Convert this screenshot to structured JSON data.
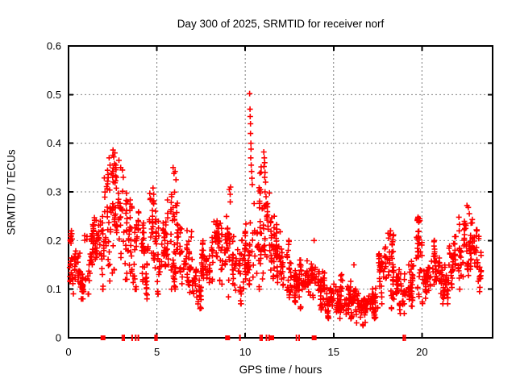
{
  "chart_data": {
    "type": "scatter",
    "title": "Day 300 of 2025, SRMTID for receiver norf",
    "xlabel": "GPS time / hours",
    "ylabel": "SRMTID / TECUs",
    "xlim": [
      0,
      24
    ],
    "ylim": [
      0,
      0.6
    ],
    "xticks": [
      0,
      5,
      10,
      15,
      20
    ],
    "yticks": [
      0,
      0.1,
      0.2,
      0.3,
      0.4,
      0.5,
      0.6
    ],
    "grid": true,
    "legend": "none",
    "marker": "plus",
    "marker_color": "#ff0000",
    "series": [
      {
        "name": "SRMTID",
        "color": "#ff0000",
        "bands_format": [
          "x_start_hour",
          "x_end_hour",
          "point_count",
          "y_min",
          "y_max"
        ],
        "bands": [
          [
            0.0,
            0.5,
            26,
            0.09,
            0.22
          ],
          [
            0.5,
            1.0,
            26,
            0.08,
            0.21
          ],
          [
            1.0,
            1.5,
            26,
            0.09,
            0.25
          ],
          [
            1.5,
            2.0,
            26,
            0.1,
            0.28
          ],
          [
            2.0,
            2.5,
            28,
            0.11,
            0.38
          ],
          [
            2.5,
            3.0,
            28,
            0.12,
            0.39
          ],
          [
            3.0,
            3.5,
            26,
            0.12,
            0.35
          ],
          [
            3.5,
            4.0,
            26,
            0.1,
            0.28
          ],
          [
            4.0,
            4.5,
            26,
            0.08,
            0.24
          ],
          [
            4.5,
            5.0,
            26,
            0.1,
            0.31
          ],
          [
            5.0,
            5.5,
            26,
            0.08,
            0.27
          ],
          [
            5.5,
            6.0,
            26,
            0.1,
            0.35
          ],
          [
            6.0,
            6.5,
            26,
            0.1,
            0.33
          ],
          [
            6.5,
            7.0,
            26,
            0.08,
            0.23
          ],
          [
            7.0,
            7.5,
            26,
            0.06,
            0.18
          ],
          [
            7.5,
            8.0,
            26,
            0.08,
            0.22
          ],
          [
            8.0,
            8.5,
            26,
            0.1,
            0.27
          ],
          [
            8.5,
            9.0,
            26,
            0.08,
            0.28
          ],
          [
            9.0,
            9.5,
            26,
            0.06,
            0.31
          ],
          [
            9.5,
            10.0,
            26,
            0.07,
            0.22
          ],
          [
            10.0,
            10.5,
            26,
            0.08,
            0.27
          ],
          [
            10.5,
            11.0,
            26,
            0.1,
            0.36
          ],
          [
            11.0,
            11.5,
            26,
            0.1,
            0.33
          ],
          [
            11.5,
            12.0,
            26,
            0.09,
            0.25
          ],
          [
            12.0,
            12.5,
            26,
            0.08,
            0.2
          ],
          [
            12.5,
            13.0,
            26,
            0.07,
            0.18
          ],
          [
            13.0,
            13.5,
            26,
            0.06,
            0.16
          ],
          [
            13.5,
            14.0,
            26,
            0.05,
            0.2
          ],
          [
            14.0,
            14.5,
            28,
            0.05,
            0.15
          ],
          [
            14.5,
            15.0,
            28,
            0.04,
            0.12
          ],
          [
            15.0,
            15.5,
            28,
            0.04,
            0.13
          ],
          [
            15.5,
            16.0,
            28,
            0.03,
            0.12
          ],
          [
            16.0,
            16.5,
            28,
            0.03,
            0.1
          ],
          [
            16.5,
            17.0,
            28,
            0.025,
            0.09
          ],
          [
            17.0,
            17.5,
            28,
            0.04,
            0.12
          ],
          [
            17.5,
            18.0,
            26,
            0.06,
            0.2
          ],
          [
            18.0,
            18.5,
            26,
            0.06,
            0.22
          ],
          [
            18.5,
            19.0,
            26,
            0.05,
            0.14
          ],
          [
            19.0,
            19.5,
            26,
            0.06,
            0.16
          ],
          [
            19.5,
            20.0,
            26,
            0.07,
            0.245
          ],
          [
            20.0,
            20.5,
            26,
            0.05,
            0.17
          ],
          [
            20.5,
            21.0,
            26,
            0.08,
            0.2
          ],
          [
            21.0,
            21.5,
            26,
            0.07,
            0.17
          ],
          [
            21.5,
            22.0,
            26,
            0.09,
            0.22
          ],
          [
            22.0,
            22.5,
            26,
            0.1,
            0.28
          ],
          [
            22.5,
            23.0,
            26,
            0.1,
            0.26
          ],
          [
            23.0,
            23.35,
            20,
            0.09,
            0.24
          ]
        ],
        "highlight_points": [
          [
            10.25,
            0.502
          ],
          [
            10.27,
            0.47
          ],
          [
            10.28,
            0.455
          ],
          [
            10.3,
            0.44
          ],
          [
            10.3,
            0.42
          ],
          [
            10.32,
            0.4
          ],
          [
            10.33,
            0.388
          ],
          [
            10.31,
            0.37
          ],
          [
            10.34,
            0.355
          ],
          [
            10.36,
            0.342
          ],
          [
            10.38,
            0.328
          ],
          [
            10.4,
            0.315
          ],
          [
            11.05,
            0.382
          ],
          [
            11.08,
            0.37
          ],
          [
            11.1,
            0.36
          ],
          [
            11.06,
            0.352
          ],
          [
            11.12,
            0.34
          ],
          [
            11.1,
            0.33
          ],
          [
            11.15,
            0.32
          ],
          [
            11.12,
            0.3
          ],
          [
            11.18,
            0.29
          ],
          [
            11.2,
            0.275
          ],
          [
            11.22,
            0.25
          ],
          [
            11.24,
            0.242
          ],
          [
            2.3,
            0.37
          ],
          [
            2.35,
            0.355
          ],
          [
            2.44,
            0.338
          ],
          [
            2.52,
            0.386
          ],
          [
            2.56,
            0.372
          ],
          [
            2.6,
            0.358
          ],
          [
            2.62,
            0.38
          ],
          [
            2.66,
            0.35
          ],
          [
            2.72,
            0.33
          ],
          [
            2.85,
            0.365
          ],
          [
            2.95,
            0.35
          ],
          [
            3.05,
            0.345
          ],
          [
            3.1,
            0.33
          ],
          [
            4.78,
            0.308
          ],
          [
            4.82,
            0.295
          ],
          [
            5.92,
            0.35
          ],
          [
            5.97,
            0.338
          ],
          [
            6.03,
            0.342
          ],
          [
            6.08,
            0.325
          ],
          [
            9.1,
            0.305
          ],
          [
            9.15,
            0.295
          ],
          [
            13.9,
            0.2
          ],
          [
            16.15,
            0.15
          ],
          [
            18.08,
            0.215
          ],
          [
            18.12,
            0.205
          ],
          [
            19.78,
            0.248
          ],
          [
            19.82,
            0.238
          ],
          [
            22.55,
            0.272
          ],
          [
            22.62,
            0.268
          ],
          [
            22.68,
            0.255
          ]
        ]
      }
    ],
    "axis_flags": {
      "description": "red markers drawn on the x-axis baseline",
      "color": "#ff0000",
      "square_hours": [
        1.95,
        9.0,
        11.5,
        13.9
      ],
      "bar_hours": [
        3.05,
        3.15,
        3.6,
        3.8,
        3.95,
        4.9,
        5.0,
        9.7,
        10.85,
        10.95,
        11.2,
        11.35,
        12.9,
        13.05,
        18.95,
        19.05
      ]
    }
  },
  "colors": {
    "background": "#ffffff",
    "frame": "#000000",
    "grid": "#808080",
    "text": "#000000",
    "data": "#ff0000"
  }
}
